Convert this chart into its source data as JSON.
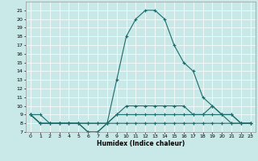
{
  "xlabel": "Humidex (Indice chaleur)",
  "xlim": [
    -0.5,
    23.5
  ],
  "ylim": [
    7,
    22
  ],
  "xticks": [
    0,
    1,
    2,
    3,
    4,
    5,
    6,
    7,
    8,
    9,
    10,
    11,
    12,
    13,
    14,
    15,
    16,
    17,
    18,
    19,
    20,
    21,
    22,
    23
  ],
  "yticks": [
    7,
    8,
    9,
    10,
    11,
    12,
    13,
    14,
    15,
    16,
    17,
    18,
    19,
    20,
    21
  ],
  "bg_color": "#c9e8e8",
  "line_color": "#1a6b6b",
  "series": [
    {
      "x": [
        0,
        1,
        2,
        3,
        4,
        5,
        6,
        7,
        8,
        9,
        10,
        11,
        12,
        13,
        14,
        15,
        16,
        17,
        18,
        19,
        20,
        21,
        22,
        23
      ],
      "y": [
        9,
        9,
        8,
        8,
        8,
        8,
        7,
        7,
        8,
        13,
        18,
        20,
        21,
        21,
        20,
        17,
        15,
        14,
        11,
        10,
        9,
        8,
        8,
        8
      ]
    },
    {
      "x": [
        0,
        1,
        2,
        3,
        4,
        5,
        6,
        7,
        8,
        9,
        10,
        11,
        12,
        13,
        14,
        15,
        16,
        17,
        18,
        19,
        20,
        21,
        22,
        23
      ],
      "y": [
        9,
        8,
        8,
        8,
        8,
        8,
        8,
        8,
        8,
        8,
        8,
        8,
        8,
        8,
        8,
        8,
        8,
        8,
        8,
        8,
        8,
        8,
        8,
        8
      ]
    },
    {
      "x": [
        0,
        1,
        2,
        3,
        4,
        5,
        6,
        7,
        8,
        9,
        10,
        11,
        12,
        13,
        14,
        15,
        16,
        17,
        18,
        19,
        20,
        21,
        22,
        23
      ],
      "y": [
        9,
        8,
        8,
        8,
        8,
        8,
        8,
        8,
        8,
        9,
        9,
        9,
        9,
        9,
        9,
        9,
        9,
        9,
        9,
        9,
        9,
        9,
        8,
        8
      ]
    },
    {
      "x": [
        0,
        1,
        2,
        3,
        4,
        5,
        6,
        7,
        8,
        9,
        10,
        11,
        12,
        13,
        14,
        15,
        16,
        17,
        18,
        19,
        20,
        21,
        22,
        23
      ],
      "y": [
        9,
        8,
        8,
        8,
        8,
        8,
        7,
        7,
        8,
        9,
        10,
        10,
        10,
        10,
        10,
        10,
        10,
        9,
        9,
        10,
        9,
        9,
        8,
        8
      ]
    }
  ]
}
